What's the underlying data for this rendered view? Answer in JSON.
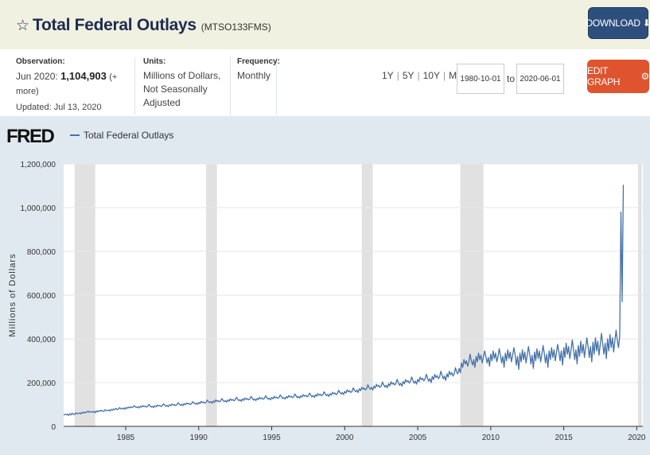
{
  "header": {
    "title": "Total Federal Outlays",
    "series_id": "(MTSO133FMS)",
    "download_label": "DOWNLOAD",
    "download_icon": "download-icon",
    "star_icon": "star-outline-icon"
  },
  "meta": {
    "observation_label": "Observation:",
    "observation_date": "Jun 2020:",
    "observation_value": "1,104,903",
    "observation_more": "(+ more)",
    "updated": "Updated: Jul 13, 2020",
    "units_label": "Units:",
    "units_line1": "Millions of Dollars,",
    "units_line2": "Not Seasonally Adjusted",
    "frequency_label": "Frequency:",
    "frequency_value": "Monthly"
  },
  "range": {
    "r1y": "1Y",
    "r5y": "5Y",
    "r10y": "10Y",
    "rmax": "Max",
    "sep": "|",
    "start_date": "1980-10-01",
    "to": "to",
    "end_date": "2020-06-01",
    "edit_label": "EDIT GRAPH",
    "edit_icon": "gear-icon"
  },
  "colors": {
    "line": "#4572a7",
    "recession": "#e1e1e1",
    "plot_bg": "#ffffff",
    "frame_bg": "#e1e9f0",
    "download_bg": "#2d4f7e",
    "edit_bg": "#e0532f"
  },
  "chart_data": {
    "type": "line",
    "logo": "FRED",
    "series": [
      {
        "name": "Total Federal Outlays",
        "color": "#4572a7"
      }
    ],
    "ylabel": "Millions of Dollars",
    "xlabel": "",
    "ylim": [
      0,
      1200000
    ],
    "xlim": [
      "1980-10",
      "2020-06"
    ],
    "yticks": [
      0,
      200000,
      400000,
      600000,
      800000,
      1000000,
      1200000
    ],
    "ytick_labels": [
      "0",
      "200,000",
      "400,000",
      "600,000",
      "800,000",
      "1,000,000",
      "1,200,000"
    ],
    "xticks": [
      1985,
      1990,
      1995,
      2000,
      2005,
      2010,
      2015,
      2020
    ],
    "xtick_labels": [
      "1985",
      "1990",
      "1995",
      "2000",
      "2005",
      "2010",
      "2015",
      "2020"
    ],
    "recessions": [
      [
        "1981-07",
        "1982-11"
      ],
      [
        "1990-07",
        "1991-03"
      ],
      [
        "2001-03",
        "2001-11"
      ],
      [
        "2007-12",
        "2009-06"
      ],
      [
        "2020-02",
        "2020-04"
      ]
    ],
    "grid": true,
    "legend": "top-left",
    "monthly_values": {
      "start": "1980-10",
      "values": [
        52000,
        55000,
        53000,
        56000,
        50000,
        58000,
        52000,
        60000,
        55000,
        54000,
        62000,
        58000,
        59000,
        61000,
        57000,
        64000,
        60000,
        66000,
        62000,
        65000,
        70000,
        64000,
        68000,
        66000,
        64000,
        69000,
        62000,
        71000,
        66000,
        72000,
        69000,
        74000,
        70000,
        68000,
        76000,
        72000,
        72000,
        75000,
        70000,
        78000,
        73000,
        80000,
        76000,
        82000,
        77000,
        79000,
        86000,
        80000,
        80000,
        84000,
        78000,
        86000,
        82000,
        88000,
        84000,
        90000,
        86000,
        88000,
        95000,
        89000,
        86000,
        90000,
        84000,
        92000,
        88000,
        95000,
        90000,
        93000,
        88000,
        91000,
        100000,
        94000,
        88000,
        92000,
        86000,
        94000,
        90000,
        97000,
        93000,
        96000,
        91000,
        94000,
        103000,
        98000,
        92000,
        96000,
        90000,
        99000,
        94000,
        102000,
        97000,
        100000,
        95000,
        98000,
        108000,
        102000,
        96000,
        101000,
        95000,
        104000,
        99000,
        107000,
        102000,
        105000,
        100000,
        103000,
        113000,
        107000,
        102000,
        107000,
        100000,
        110000,
        104000,
        114000,
        108000,
        112000,
        106000,
        109000,
        120000,
        113000,
        108000,
        113000,
        106000,
        116000,
        110000,
        121000,
        114000,
        118000,
        112000,
        116000,
        127000,
        119000,
        113000,
        118000,
        111000,
        121000,
        115000,
        126000,
        119000,
        123000,
        117000,
        121000,
        133000,
        125000,
        117000,
        122000,
        114000,
        125000,
        119000,
        130000,
        123000,
        127000,
        121000,
        125000,
        137000,
        129000,
        120000,
        125000,
        118000,
        128000,
        122000,
        133000,
        126000,
        130000,
        124000,
        128000,
        140000,
        132000,
        124000,
        129000,
        121000,
        132000,
        126000,
        137000,
        130000,
        134000,
        128000,
        132000,
        144000,
        136000,
        127000,
        132000,
        125000,
        136000,
        130000,
        141000,
        134000,
        138000,
        131000,
        135000,
        148000,
        140000,
        131000,
        137000,
        129000,
        140000,
        134000,
        145000,
        138000,
        142000,
        135000,
        139000,
        152000,
        144000,
        135000,
        141000,
        132000,
        145000,
        138000,
        150000,
        142000,
        147000,
        140000,
        144000,
        158000,
        149000,
        140000,
        146000,
        137000,
        150000,
        143000,
        156000,
        148000,
        153000,
        145000,
        150000,
        165000,
        155000,
        148000,
        155000,
        145000,
        160000,
        152000,
        167000,
        158000,
        163000,
        155000,
        160000,
        176000,
        165000,
        158000,
        166000,
        155000,
        172000,
        163000,
        179000,
        170000,
        175000,
        167000,
        172000,
        190000,
        178000,
        170000,
        178000,
        166000,
        184000,
        175000,
        192000,
        182000,
        188000,
        178000,
        184000,
        203000,
        190000,
        180000,
        188000,
        176000,
        195000,
        185000,
        204000,
        193000,
        199000,
        189000,
        195000,
        215000,
        201000,
        188000,
        197000,
        184000,
        205000,
        194000,
        214000,
        203000,
        209000,
        198000,
        205000,
        226000,
        211000,
        197000,
        207000,
        193000,
        215000,
        204000,
        225000,
        213000,
        220000,
        208000,
        216000,
        238000,
        222000,
        206000,
        218000,
        200000,
        228000,
        214000,
        238000,
        223000,
        232000,
        218000,
        227000,
        252000,
        234000,
        217000,
        230000,
        210000,
        240000,
        225000,
        252000,
        236000,
        246000,
        230000,
        240000,
        268000,
        248000,
        240000,
        265000,
        245000,
        290000,
        270000,
        305000,
        285000,
        300000,
        275000,
        295000,
        330000,
        300000,
        280000,
        305000,
        270000,
        320000,
        295000,
        335000,
        305000,
        325000,
        290000,
        315000,
        345000,
        320000,
        290000,
        315000,
        275000,
        330000,
        300000,
        345000,
        310000,
        335000,
        295000,
        320000,
        355000,
        325000,
        290000,
        320000,
        270000,
        335000,
        300000,
        350000,
        310000,
        340000,
        295000,
        325000,
        360000,
        330000,
        280000,
        320000,
        260000,
        335000,
        295000,
        350000,
        305000,
        340000,
        290000,
        325000,
        365000,
        330000,
        285000,
        325000,
        265000,
        340000,
        300000,
        355000,
        310000,
        345000,
        295000,
        330000,
        370000,
        335000,
        290000,
        330000,
        270000,
        345000,
        305000,
        360000,
        315000,
        350000,
        300000,
        335000,
        375000,
        340000,
        300000,
        345000,
        280000,
        360000,
        315000,
        380000,
        330000,
        365000,
        310000,
        350000,
        395000,
        355000,
        305000,
        350000,
        285000,
        370000,
        320000,
        390000,
        335000,
        375000,
        315000,
        360000,
        405000,
        365000,
        315000,
        365000,
        295000,
        385000,
        330000,
        405000,
        345000,
        390000,
        325000,
        375000,
        425000,
        380000,
        330000,
        380000,
        310000,
        400000,
        345000,
        420000,
        360000,
        405000,
        340000,
        390000,
        440000,
        395000,
        360000,
        410000,
        980000,
        570000,
        1104903
      ]
    }
  }
}
